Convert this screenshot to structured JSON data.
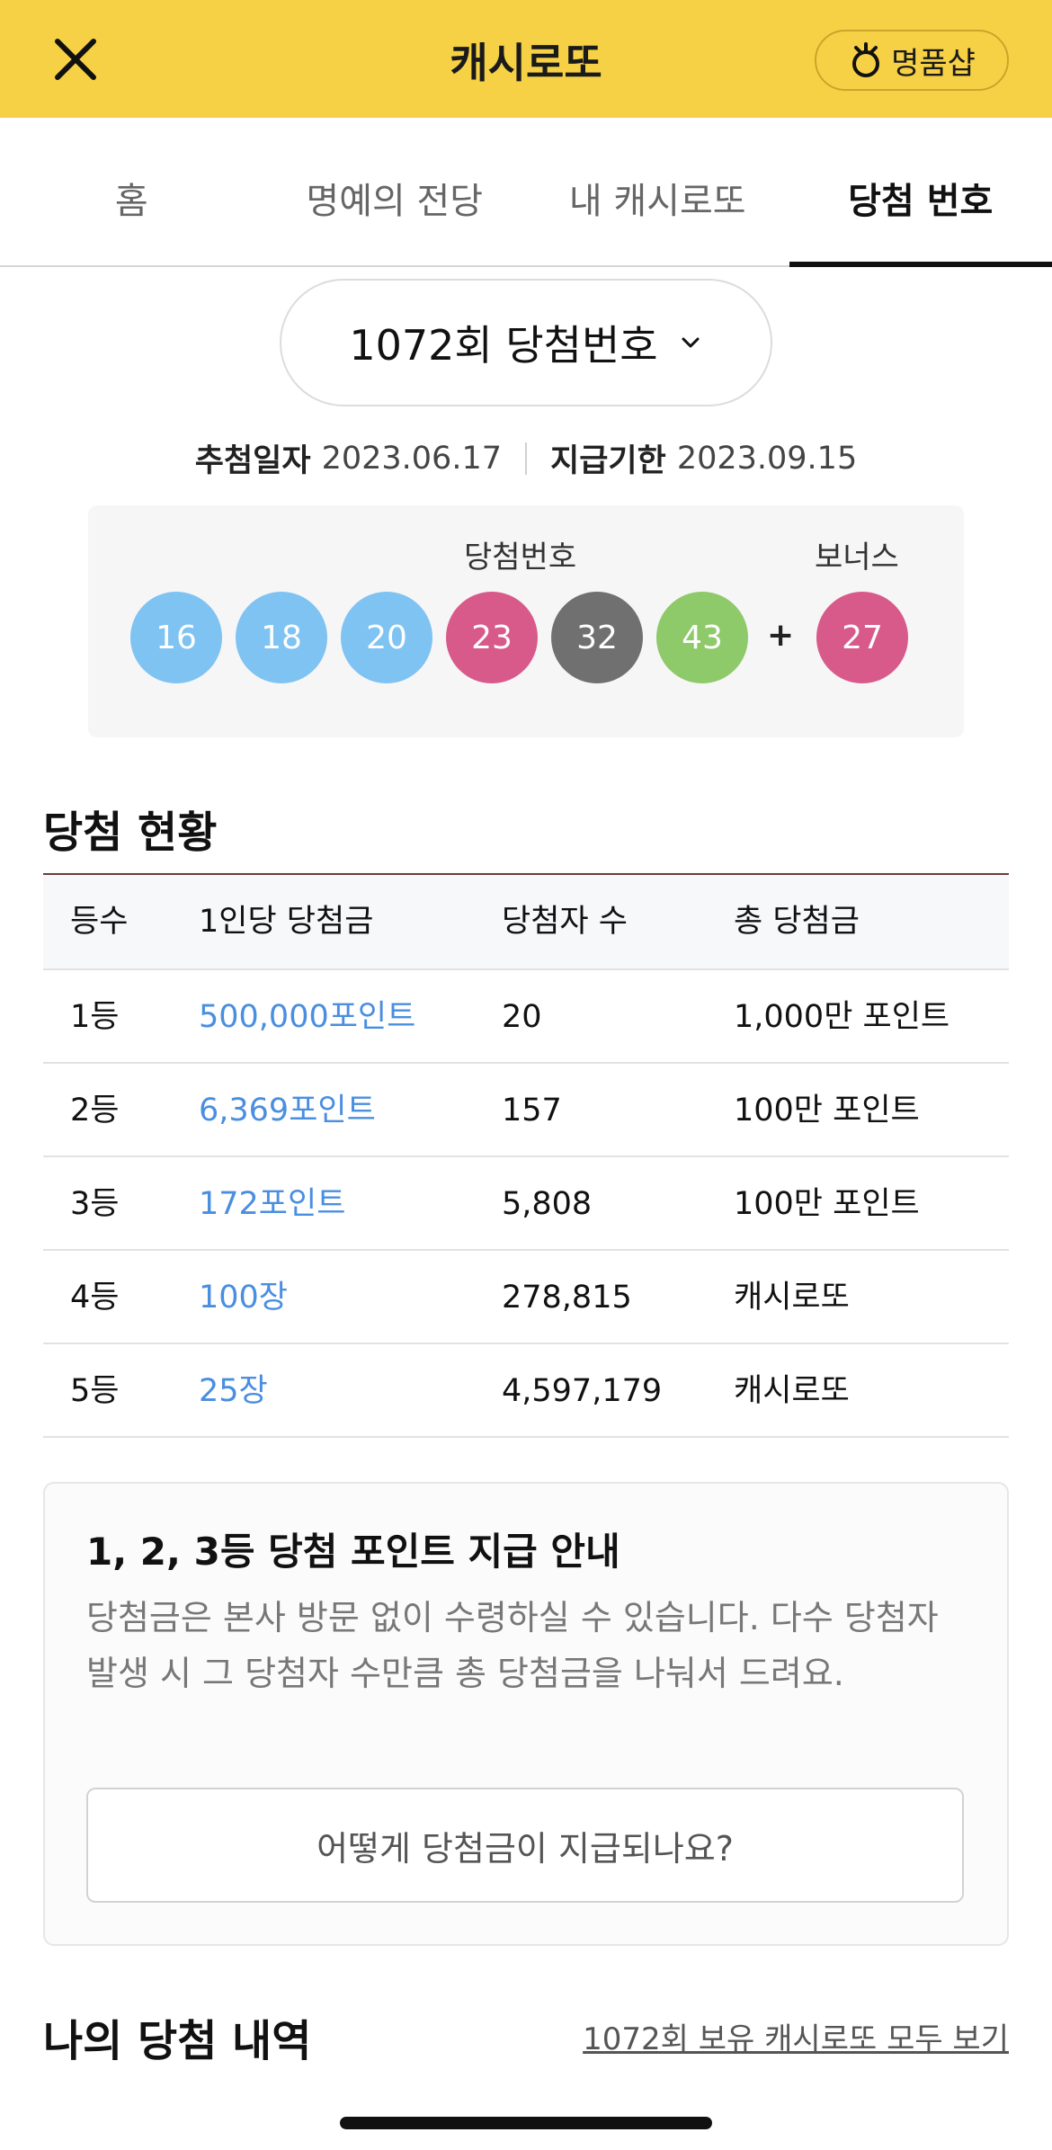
{
  "header": {
    "title": "캐시로또",
    "shop_label": "명품샵"
  },
  "tabs": [
    {
      "label": "홈",
      "active": false
    },
    {
      "label": "명예의 전당",
      "active": false
    },
    {
      "label": "내 캐시로또",
      "active": false
    },
    {
      "label": "당첨 번호",
      "active": true
    }
  ],
  "round": {
    "label": "1072회 당첨번호"
  },
  "dates": {
    "draw_label": "추첨일자",
    "draw_date": "2023.06.17",
    "deadline_label": "지급기한",
    "deadline_date": "2023.09.15"
  },
  "numbers": {
    "label": "당첨번호",
    "bonus_label": "보너스",
    "plus": "+",
    "balls": [
      {
        "value": "16",
        "color": "#7fc3f3"
      },
      {
        "value": "18",
        "color": "#7fc3f3"
      },
      {
        "value": "20",
        "color": "#7fc3f3"
      },
      {
        "value": "23",
        "color": "#d85a8a"
      },
      {
        "value": "32",
        "color": "#707070"
      },
      {
        "value": "43",
        "color": "#8ec96a"
      }
    ],
    "bonus": {
      "value": "27",
      "color": "#d85a8a"
    }
  },
  "status": {
    "title": "당첨 현황",
    "headers": [
      "등수",
      "1인당 당첨금",
      "당첨자 수",
      "총 당첨금"
    ],
    "rows": [
      [
        "1등",
        "500,000포인트",
        "20",
        "1,000만 포인트"
      ],
      [
        "2등",
        "6,369포인트",
        "157",
        "100만 포인트"
      ],
      [
        "3등",
        "172포인트",
        "5,808",
        "100만 포인트"
      ],
      [
        "4등",
        "100장",
        "278,815",
        "캐시로또"
      ],
      [
        "5등",
        "25장",
        "4,597,179",
        "캐시로또"
      ]
    ]
  },
  "info": {
    "title": "1, 2, 3등 당첨 포인트 지급 안내",
    "text": "당첨금은 본사 방문 없이 수령하실 수 있습니다. 다수 당첨자 발생 시 그 당첨자 수만큼 총 당첨금을 나눠서 드려요.",
    "button": "어떻게 당첨금이 지급되나요?"
  },
  "my": {
    "title": "나의 당첨 내역",
    "link": "1072회 보유 캐시로또 모두 보기"
  },
  "colors": {
    "header_bg": "#f7d145",
    "link_blue": "#4a8ee0"
  }
}
